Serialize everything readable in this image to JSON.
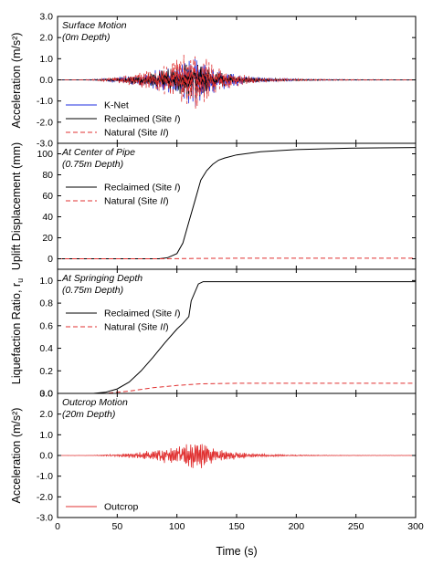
{
  "chart_data": [
    {
      "type": "line",
      "ylabel": "Acceleration (m/s²)",
      "annotation": [
        "Surface Motion",
        "(0m Depth)"
      ],
      "xlim": [
        0,
        300
      ],
      "ylim": [
        -3.0,
        3.0
      ],
      "yticks": [
        "-3.0",
        "-2.0",
        "-1.0",
        "0.0",
        "1.0",
        "2.0",
        "3.0"
      ],
      "legend": {
        "position": "bottom-left",
        "entries": [
          "K-Net",
          "Reclaimed (Site I)",
          "Natural (Site II)"
        ]
      },
      "series": [
        {
          "name": "K-Net",
          "color": "#1f2de0",
          "style": "solid",
          "kind": "motion",
          "peak_time": 115,
          "peak_amp": 1.3
        },
        {
          "name": "Reclaimed (Site I)",
          "color": "#000000",
          "style": "solid",
          "kind": "motion",
          "peak_time": 115,
          "peak_amp": 1.0
        },
        {
          "name": "Natural (Site II)",
          "color": "#e03030",
          "style": "dashed",
          "kind": "motion",
          "peak_time": 115,
          "peak_amp": 1.5
        }
      ]
    },
    {
      "type": "line",
      "ylabel": "Uplift Displacement (mm)",
      "annotation": [
        "At Center of Pipe",
        "(0.75m Depth)"
      ],
      "xlim": [
        0,
        300
      ],
      "ylim": [
        -10,
        110
      ],
      "yticks": [
        "0",
        "20",
        "40",
        "60",
        "80",
        "100"
      ],
      "legend": {
        "position": "top-left",
        "entries": [
          "Reclaimed (Site I)",
          "Natural (Site II)"
        ]
      },
      "series": [
        {
          "name": "Reclaimed (Site I)",
          "color": "#000000",
          "style": "solid",
          "x": [
            0,
            85,
            92,
            100,
            105,
            110,
            115,
            120,
            125,
            130,
            135,
            140,
            150,
            170,
            200,
            250,
            300
          ],
          "y": [
            0,
            0,
            1,
            5,
            15,
            35,
            55,
            75,
            84,
            90,
            94,
            96,
            99,
            102,
            104,
            105.5,
            106
          ]
        },
        {
          "name": "Natural (Site II)",
          "color": "#e03030",
          "style": "dashed",
          "x": [
            0,
            90,
            110,
            150,
            300
          ],
          "y": [
            0,
            0,
            0.3,
            0.5,
            0.5
          ]
        }
      ]
    },
    {
      "type": "line",
      "ylabel": "Liquefaction Ratio, r",
      "ylabel_sub": "u",
      "annotation": [
        "At Springing Depth",
        "(0.75m Depth)"
      ],
      "xlim": [
        0,
        300
      ],
      "ylim": [
        0.0,
        1.1
      ],
      "yticks": [
        "0.0",
        "0.2",
        "0.4",
        "0.6",
        "0.8",
        "1.0"
      ],
      "legend": {
        "position": "top-left",
        "entries": [
          "Reclaimed (Site I)",
          "Natural (Site II)"
        ]
      },
      "series": [
        {
          "name": "Reclaimed (Site I)",
          "color": "#000000",
          "style": "solid",
          "x": [
            0,
            30,
            40,
            50,
            60,
            70,
            80,
            90,
            100,
            105,
            110,
            112,
            118,
            122,
            130,
            150,
            200,
            250,
            300
          ],
          "y": [
            0,
            0,
            0.01,
            0.04,
            0.1,
            0.2,
            0.32,
            0.45,
            0.57,
            0.62,
            0.68,
            0.82,
            0.97,
            0.99,
            0.99,
            0.99,
            0.99,
            0.99,
            0.99
          ]
        },
        {
          "name": "Natural (Site II)",
          "color": "#e03030",
          "style": "dashed",
          "x": [
            0,
            40,
            60,
            80,
            100,
            120,
            150,
            200,
            300
          ],
          "y": [
            0,
            0,
            0.02,
            0.05,
            0.07,
            0.085,
            0.09,
            0.09,
            0.09
          ]
        }
      ]
    },
    {
      "type": "line",
      "ylabel": "Acceleration (m/s²)",
      "annotation": [
        "Outcrop Motion",
        "(20m Depth)"
      ],
      "xlabel": "Time (s)",
      "xlim": [
        0,
        300
      ],
      "xticks": [
        "0",
        "50",
        "100",
        "150",
        "200",
        "250",
        "300"
      ],
      "ylim": [
        -3.0,
        3.0
      ],
      "yticks": [
        "-3.0",
        "-2.0",
        "-1.0",
        "0.0",
        "1.0",
        "2.0",
        "3.0"
      ],
      "legend": {
        "position": "bottom-left",
        "entries": [
          "Outcrop"
        ]
      },
      "series": [
        {
          "name": "Outcrop",
          "color": "#e03030",
          "style": "solid",
          "kind": "motion",
          "peak_time": 118,
          "peak_amp": 0.75
        }
      ]
    }
  ]
}
